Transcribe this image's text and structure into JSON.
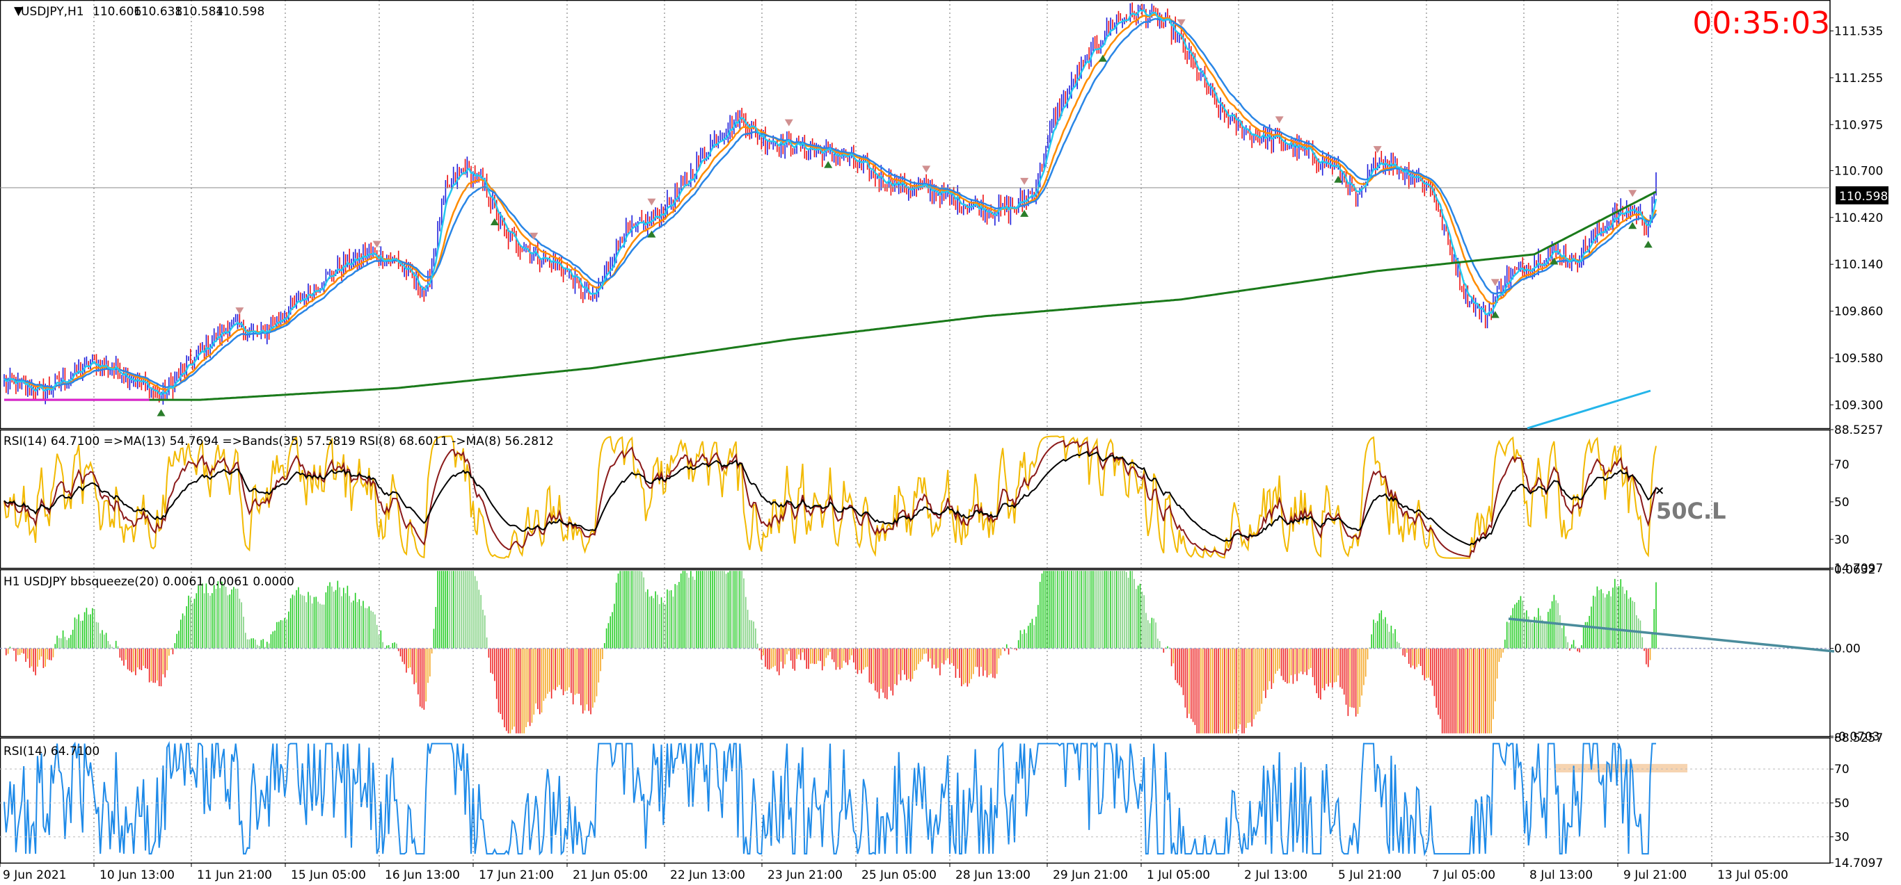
{
  "chart_data": {
    "type": "candlestick",
    "symbol_header": "USDJPY,H1",
    "ohlc_header": {
      "open": "110.606",
      "high": "110.638",
      "low": "110.584",
      "close": "110.598"
    },
    "countdown": "00:35:03",
    "current_price_label": "110.598",
    "watermark": "50C.L",
    "colors": {
      "bull": "#1f1fdc",
      "bear": "#ee1111",
      "ma_fast": "#23c8f0",
      "ma_mid": "#2a86e6",
      "ma_orange": "#ff8c00",
      "ma_slow": "#1a7a1a",
      "ma_magenta": "#e020d0",
      "grid": "#000000"
    },
    "x_axis_labels": [
      "9 Jun 2021",
      "10 Jun 13:00",
      "11 Jun 21:00",
      "15 Jun 05:00",
      "16 Jun 13:00",
      "17 Jun 21:00",
      "21 Jun 05:00",
      "22 Jun 13:00",
      "23 Jun 21:00",
      "25 Jun 05:00",
      "28 Jun 13:00",
      "29 Jun 21:00",
      "1 Jul 05:00",
      "2 Jul 13:00",
      "5 Jul 21:00",
      "7 Jul 05:00",
      "8 Jul 13:00",
      "9 Jul 21:00",
      "13 Jul 05:00"
    ],
    "panes": [
      {
        "name": "price",
        "y_ticks": [
          "111.535",
          "111.255",
          "110.975",
          "110.700",
          "110.420",
          "110.140",
          "109.860",
          "109.580",
          "109.300"
        ],
        "ylim": [
          109.16,
          111.72
        ]
      },
      {
        "name": "rsi-bands",
        "header": "RSI(14) 64.7100  =>MA(13) 54.7694  =>Bands(35) 57.5819  RSI(8) 68.6011  ->MA(8) 56.2812",
        "y_ticks": [
          "88.5257",
          "70",
          "50",
          "30",
          "14.7097"
        ],
        "ylim": [
          14.7097,
          88.5257
        ]
      },
      {
        "name": "bbsqueeze",
        "header": "H1 USDJPY bbsqueeze(20) 0.0061 0.0061 0.0000",
        "y_ticks": [
          "0.0632",
          "0.00",
          "-0.0703"
        ],
        "ylim": [
          -0.0703,
          0.0632
        ]
      },
      {
        "name": "rsi",
        "header": "RSI(14) 64.7100",
        "y_ticks": [
          "88.5257",
          "70",
          "50",
          "30",
          "14.7097"
        ],
        "ylim": [
          14.7097,
          88.5257
        ]
      }
    ],
    "price_anchors": [
      [
        0,
        109.44
      ],
      [
        20,
        109.38
      ],
      [
        45,
        109.55
      ],
      [
        60,
        109.5
      ],
      [
        80,
        109.35
      ],
      [
        100,
        109.62
      ],
      [
        115,
        109.78
      ],
      [
        130,
        109.71
      ],
      [
        150,
        109.92
      ],
      [
        170,
        110.12
      ],
      [
        185,
        110.2
      ],
      [
        200,
        110.16
      ],
      [
        215,
        109.96
      ],
      [
        225,
        110.58
      ],
      [
        235,
        110.72
      ],
      [
        245,
        110.6
      ],
      [
        255,
        110.32
      ],
      [
        270,
        110.2
      ],
      [
        285,
        110.12
      ],
      [
        300,
        109.92
      ],
      [
        315,
        110.32
      ],
      [
        330,
        110.4
      ],
      [
        345,
        110.58
      ],
      [
        360,
        110.86
      ],
      [
        375,
        111.03
      ],
      [
        385,
        110.9
      ],
      [
        400,
        110.86
      ],
      [
        415,
        110.82
      ],
      [
        430,
        110.78
      ],
      [
        445,
        110.66
      ],
      [
        460,
        110.6
      ],
      [
        475,
        110.58
      ],
      [
        490,
        110.5
      ],
      [
        505,
        110.46
      ],
      [
        515,
        110.48
      ],
      [
        525,
        110.58
      ],
      [
        535,
        111.0
      ],
      [
        548,
        111.3
      ],
      [
        565,
        111.58
      ],
      [
        578,
        111.66
      ],
      [
        585,
        111.62
      ],
      [
        595,
        111.55
      ],
      [
        605,
        111.35
      ],
      [
        620,
        111.05
      ],
      [
        635,
        110.92
      ],
      [
        650,
        110.88
      ],
      [
        665,
        110.8
      ],
      [
        680,
        110.7
      ],
      [
        690,
        110.52
      ],
      [
        700,
        110.78
      ],
      [
        710,
        110.72
      ],
      [
        720,
        110.66
      ],
      [
        728,
        110.58
      ],
      [
        735,
        110.3
      ],
      [
        745,
        109.95
      ],
      [
        755,
        109.82
      ],
      [
        765,
        110.05
      ],
      [
        775,
        110.12
      ],
      [
        790,
        110.22
      ],
      [
        800,
        110.15
      ],
      [
        810,
        110.3
      ],
      [
        820,
        110.42
      ],
      [
        830,
        110.48
      ],
      [
        838,
        110.36
      ],
      [
        842,
        110.6
      ]
    ]
  }
}
